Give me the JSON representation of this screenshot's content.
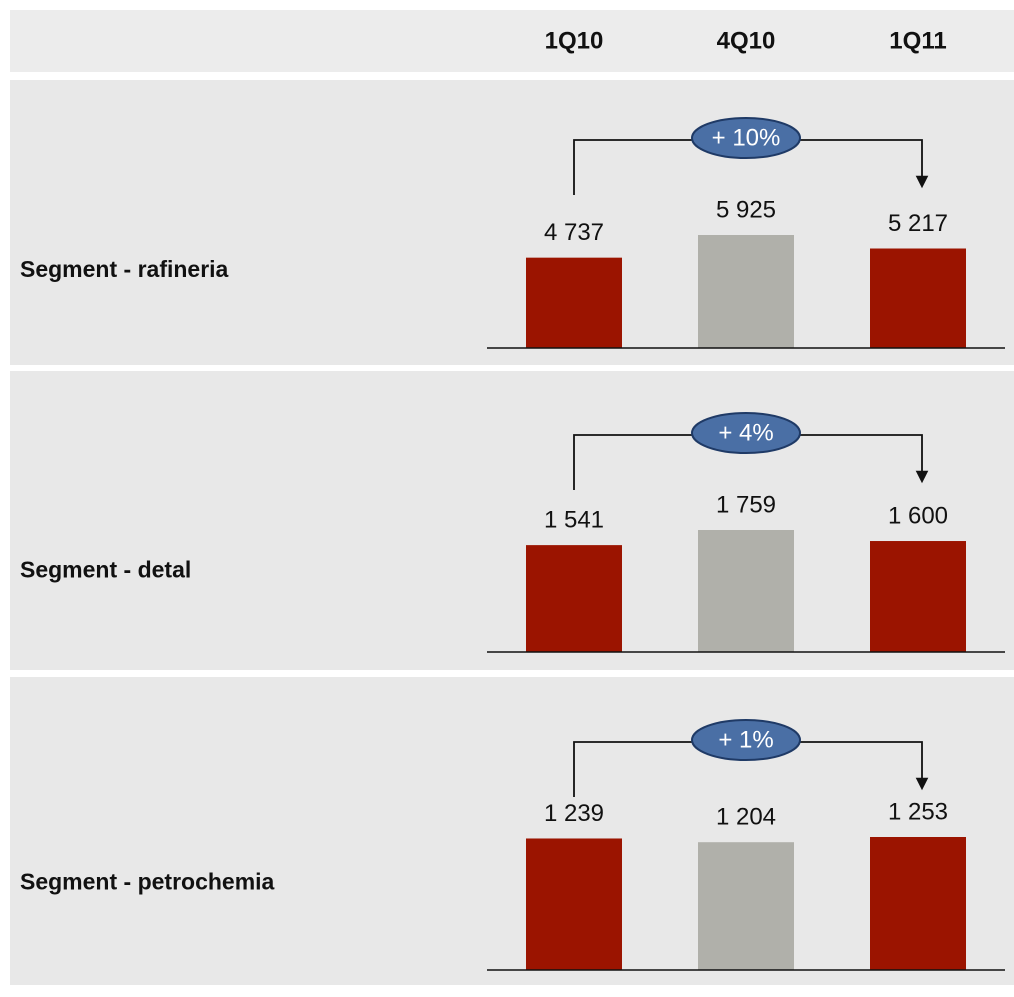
{
  "chart_data": {
    "type": "bar",
    "categories": [
      "1Q10",
      "4Q10",
      "1Q11"
    ],
    "colors": [
      "#9b1400",
      "#b0b0aa",
      "#9b1400"
    ],
    "panels": [
      {
        "title": "Segment - rafineria",
        "values": [
          4737,
          5925,
          5217
        ],
        "value_labels": [
          "4 737",
          "5 925",
          "5 217"
        ],
        "annotation": "+ 10%"
      },
      {
        "title": "Segment - detal",
        "values": [
          1541,
          1759,
          1600
        ],
        "value_labels": [
          "1 541",
          "1 759",
          "1 600"
        ],
        "annotation": "+ 4%"
      },
      {
        "title": "Segment - petrochemia",
        "values": [
          1239,
          1204,
          1253
        ],
        "value_labels": [
          "1 239",
          "1 204",
          "1 253"
        ],
        "annotation": "+ 1%"
      }
    ]
  }
}
